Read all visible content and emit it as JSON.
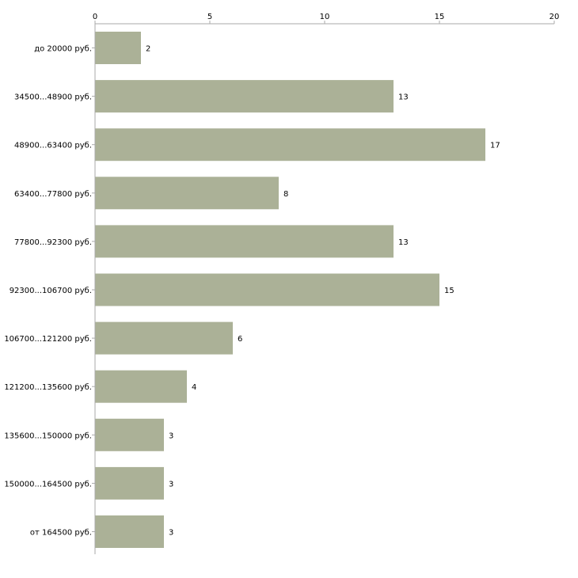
{
  "chart_data": {
    "type": "bar",
    "orientation": "horizontal",
    "title": "",
    "xlabel": "",
    "ylabel": "",
    "xlim": [
      0,
      20
    ],
    "ticks": [
      0,
      5,
      10,
      15,
      20
    ],
    "grid": false,
    "bar_color": "#abb197",
    "categories": [
      "до 20000 руб.",
      "34500...48900 руб.",
      "48900...63400 руб.",
      "63400...77800 руб.",
      "77800...92300 руб.",
      "92300...106700 руб.",
      "106700...121200 руб.",
      "121200...135600 руб.",
      "135600...150000 руб.",
      "150000...164500 руб.",
      "от 164500 руб."
    ],
    "values": [
      2,
      13,
      17,
      8,
      13,
      15,
      6,
      4,
      3,
      3,
      3
    ]
  }
}
